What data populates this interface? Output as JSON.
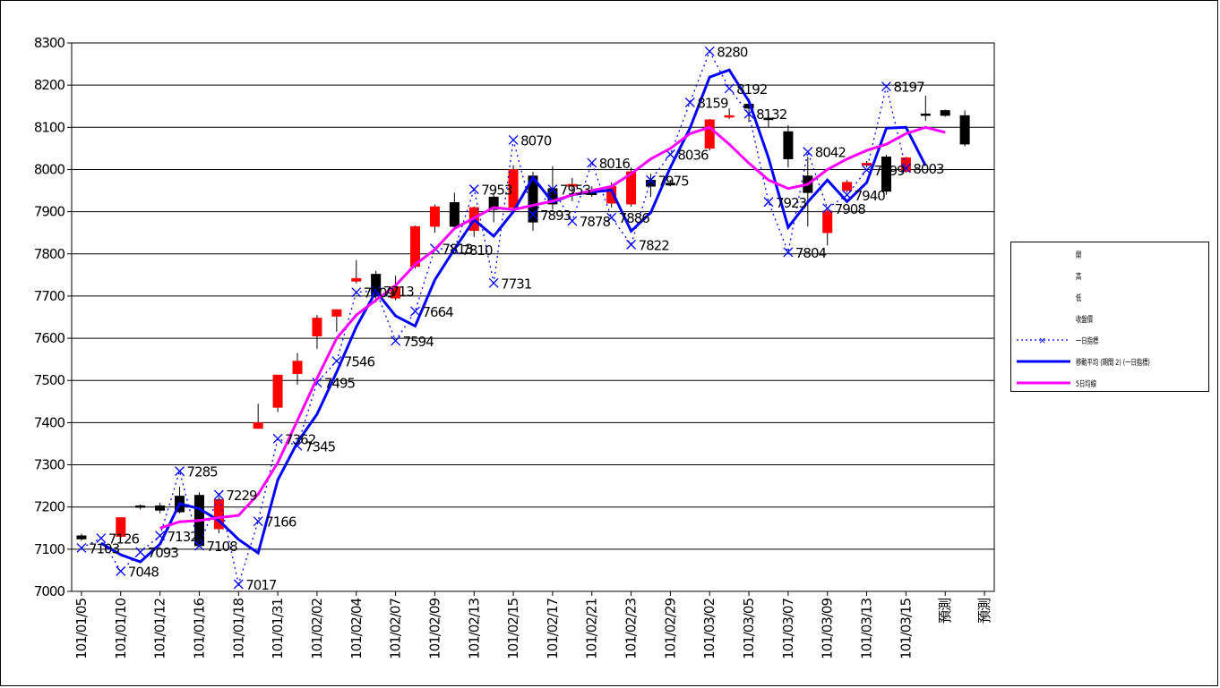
{
  "colors": {
    "background": "#ffffff",
    "grid": "#000000",
    "up_candle": "#ff0000",
    "down_candle": "#000000",
    "index_line": "#0000ff",
    "avg_line": "#0000ff",
    "ma_line": "#ff00ff"
  },
  "legend": {
    "items": [
      {
        "name": "open-entry",
        "label": "開"
      },
      {
        "name": "high-entry",
        "label": "高"
      },
      {
        "name": "low-entry",
        "label": "低"
      },
      {
        "name": "close-entry",
        "label": "收盤價"
      },
      {
        "name": "index-entry",
        "label": "一日指標"
      },
      {
        "name": "avg-entry",
        "label": "移動平均 (期間 2) (一日指標)"
      },
      {
        "name": "ma-entry",
        "label": "5日均線"
      }
    ]
  },
  "chart_data": {
    "type": "line",
    "title": "",
    "xlabel": "",
    "ylabel": "",
    "ylim": [
      7000,
      8300
    ],
    "yticks": [
      7000,
      7100,
      7200,
      7300,
      7400,
      7500,
      7600,
      7700,
      7800,
      7900,
      8000,
      8100,
      8200,
      8300
    ],
    "grid": true,
    "legend_position": "right",
    "x_tick_labels": [
      "101/01/05",
      "101/01/10",
      "101/01/12",
      "101/01/16",
      "101/01/18",
      "101/01/31",
      "101/02/02",
      "101/02/04",
      "101/02/07",
      "101/02/09",
      "101/02/13",
      "101/02/15",
      "101/02/17",
      "101/02/21",
      "101/02/23",
      "101/02/29",
      "101/03/02",
      "101/03/05",
      "101/03/07",
      "101/03/09",
      "101/03/13",
      "101/03/15",
      "預測",
      "預測"
    ],
    "candles": [
      {
        "i": 0,
        "open": 7132,
        "high": 7137,
        "low": 7120,
        "close": 7124
      },
      {
        "i": 2,
        "open": 7130,
        "high": 7175,
        "low": 7127,
        "close": 7175
      },
      {
        "i": 3,
        "open": 7203,
        "high": 7206,
        "low": 7194,
        "close": 7199
      },
      {
        "i": 4,
        "open": 7203,
        "high": 7210,
        "low": 7185,
        "close": 7192
      },
      {
        "i": 5,
        "open": 7226,
        "high": 7248,
        "low": 7185,
        "close": 7188
      },
      {
        "i": 6,
        "open": 7228,
        "high": 7235,
        "low": 7105,
        "close": 7108
      },
      {
        "i": 7,
        "open": 7148,
        "high": 7225,
        "low": 7138,
        "close": 7218
      },
      {
        "i": 9,
        "open": 7386,
        "high": 7445,
        "low": 7385,
        "close": 7400
      },
      {
        "i": 10,
        "open": 7436,
        "high": 7513,
        "low": 7425,
        "close": 7513
      },
      {
        "i": 11,
        "open": 7516,
        "high": 7565,
        "low": 7490,
        "close": 7546
      },
      {
        "i": 12,
        "open": 7605,
        "high": 7655,
        "low": 7575,
        "close": 7648
      },
      {
        "i": 13,
        "open": 7652,
        "high": 7668,
        "low": 7615,
        "close": 7668
      },
      {
        "i": 14,
        "open": 7735,
        "high": 7785,
        "low": 7730,
        "close": 7742
      },
      {
        "i": 15,
        "open": 7752,
        "high": 7760,
        "low": 7685,
        "close": 7700
      },
      {
        "i": 16,
        "open": 7695,
        "high": 7748,
        "low": 7690,
        "close": 7722
      },
      {
        "i": 17,
        "open": 7770,
        "high": 7867,
        "low": 7765,
        "close": 7865
      },
      {
        "i": 18,
        "open": 7865,
        "high": 7917,
        "low": 7850,
        "close": 7912
      },
      {
        "i": 19,
        "open": 7922,
        "high": 7945,
        "low": 7860,
        "close": 7865
      },
      {
        "i": 20,
        "open": 7855,
        "high": 7912,
        "low": 7840,
        "close": 7910
      },
      {
        "i": 21,
        "open": 7935,
        "high": 7945,
        "low": 7875,
        "close": 7905
      },
      {
        "i": 22,
        "open": 7910,
        "high": 8010,
        "low": 7905,
        "close": 8000
      },
      {
        "i": 23,
        "open": 7985,
        "high": 7995,
        "low": 7855,
        "close": 7875
      },
      {
        "i": 24,
        "open": 7955,
        "high": 8008,
        "low": 7905,
        "close": 7918
      },
      {
        "i": 25,
        "open": 7960,
        "high": 7980,
        "low": 7925,
        "close": 7965
      },
      {
        "i": 26,
        "open": 7950,
        "high": 7960,
        "low": 7935,
        "close": 7940
      },
      {
        "i": 27,
        "open": 7920,
        "high": 7970,
        "low": 7910,
        "close": 7960
      },
      {
        "i": 28,
        "open": 7918,
        "high": 8005,
        "low": 7912,
        "close": 7995
      },
      {
        "i": 29,
        "open": 7975,
        "high": 7990,
        "low": 7935,
        "close": 7960
      },
      {
        "i": 30,
        "open": 7968,
        "high": 7975,
        "low": 7960,
        "close": 7963
      },
      {
        "i": 32,
        "open": 8050,
        "high": 8120,
        "low": 8045,
        "close": 8118
      },
      {
        "i": 33,
        "open": 8125,
        "high": 8145,
        "low": 8120,
        "close": 8128
      },
      {
        "i": 34,
        "open": 8155,
        "high": 8168,
        "low": 8112,
        "close": 8145
      },
      {
        "i": 35,
        "open": 8122,
        "high": 8135,
        "low": 8100,
        "close": 8120
      },
      {
        "i": 36,
        "open": 8090,
        "high": 8105,
        "low": 8005,
        "close": 8025
      },
      {
        "i": 37,
        "open": 7985,
        "high": 8030,
        "low": 7865,
        "close": 7945
      },
      {
        "i": 38,
        "open": 7850,
        "high": 7905,
        "low": 7820,
        "close": 7902
      },
      {
        "i": 39,
        "open": 7950,
        "high": 7975,
        "low": 7945,
        "close": 7970
      },
      {
        "i": 40,
        "open": 8010,
        "high": 8020,
        "low": 8005,
        "close": 8015
      },
      {
        "i": 41,
        "open": 8030,
        "high": 8035,
        "low": 7940,
        "close": 7948
      },
      {
        "i": 42,
        "open": 7995,
        "high": 8030,
        "low": 7992,
        "close": 8028
      },
      {
        "i": 43,
        "open": 8132,
        "high": 8175,
        "low": 8115,
        "close": 8130
      },
      {
        "i": 44,
        "open": 8140,
        "high": 8142,
        "low": 8125,
        "close": 8128
      },
      {
        "i": 45,
        "open": 8128,
        "high": 8140,
        "low": 8055,
        "close": 8060
      }
    ],
    "series": [
      {
        "name": "一日指標",
        "style": "dotted-x",
        "values": [
          7103,
          7126,
          7048,
          7093,
          7132,
          7285,
          7108,
          7229,
          7017,
          7166,
          7362,
          7345,
          7495,
          7546,
          7709,
          7713,
          7594,
          7664,
          7813,
          7810,
          7953,
          7731,
          8070,
          7893,
          7953,
          7878,
          8016,
          7886,
          7822,
          7975,
          8036,
          8159,
          8280,
          8192,
          8132,
          7923,
          7804,
          8042,
          7908,
          7940,
          7999,
          8197,
          8003
        ],
        "x_index": [
          0,
          1,
          2,
          3,
          4,
          5,
          6,
          7,
          8,
          9,
          10,
          11,
          12,
          13,
          14,
          15,
          16,
          17,
          18,
          19,
          20,
          21,
          22,
          23,
          24,
          25,
          26,
          27,
          28,
          29,
          30,
          31,
          32,
          33,
          34,
          35,
          36,
          37,
          38,
          39,
          40,
          41,
          42
        ]
      },
      {
        "name": "移動平均 (期間 2) (一日指標)",
        "style": "solid",
        "values": [
          7114,
          7087,
          7070,
          7112,
          7208,
          7196,
          7168,
          7123,
          7091,
          7264,
          7353,
          7420,
          7520,
          7627,
          7711,
          7653,
          7629,
          7738,
          7811,
          7881,
          7842,
          7900,
          7981,
          7923,
          7940,
          7947,
          7951,
          7854,
          7898,
          8005,
          8098,
          8219,
          8236,
          8162,
          8027,
          7863,
          7923,
          7975,
          7924,
          7969,
          8098,
          8100,
          8009
        ],
        "x_index": [
          1,
          2,
          3,
          4,
          5,
          6,
          7,
          8,
          9,
          10,
          11,
          12,
          13,
          14,
          15,
          16,
          17,
          18,
          19,
          20,
          21,
          22,
          23,
          24,
          25,
          26,
          27,
          28,
          29,
          30,
          31,
          32,
          33,
          34,
          35,
          36,
          37,
          38,
          39,
          40,
          41,
          42,
          43
        ]
      },
      {
        "name": "5日均線",
        "style": "solid",
        "values": [
          7150,
          7165,
          7168,
          7175,
          7180,
          7230,
          7305,
          7405,
          7505,
          7600,
          7655,
          7690,
          7725,
          7775,
          7810,
          7860,
          7885,
          7910,
          7905,
          7915,
          7925,
          7940,
          7950,
          7960,
          7990,
          8025,
          8050,
          8085,
          8100,
          8060,
          8015,
          7975,
          7955,
          7965,
          8000,
          8025,
          8045,
          8060,
          8085,
          8100,
          8088
        ],
        "x_index": [
          4,
          5,
          6,
          7,
          8,
          9,
          10,
          11,
          12,
          13,
          14,
          15,
          16,
          17,
          18,
          19,
          20,
          21,
          22,
          23,
          24,
          25,
          26,
          27,
          28,
          29,
          30,
          31,
          32,
          33,
          34,
          35,
          36,
          37,
          38,
          39,
          40,
          41,
          42,
          43,
          44
        ]
      }
    ],
    "data_labels": [
      {
        "i": 0,
        "text": "7103"
      },
      {
        "i": 1,
        "text": "7126"
      },
      {
        "i": 2,
        "text": "7048"
      },
      {
        "i": 3,
        "text": "7093"
      },
      {
        "i": 4,
        "text": "7132"
      },
      {
        "i": 5,
        "text": "7285"
      },
      {
        "i": 6,
        "text": "7108"
      },
      {
        "i": 7,
        "text": "7229"
      },
      {
        "i": 8,
        "text": "7017"
      },
      {
        "i": 9,
        "text": "7166"
      },
      {
        "i": 10,
        "text": "7362"
      },
      {
        "i": 11,
        "text": "7345"
      },
      {
        "i": 12,
        "text": "7495"
      },
      {
        "i": 13,
        "text": "7546"
      },
      {
        "i": 14,
        "text": "7709"
      },
      {
        "i": 15,
        "text": "7713"
      },
      {
        "i": 16,
        "text": "7594"
      },
      {
        "i": 17,
        "text": "7664"
      },
      {
        "i": 18,
        "text": "7813"
      },
      {
        "i": 19,
        "text": "7810"
      },
      {
        "i": 20,
        "text": "7953"
      },
      {
        "i": 21,
        "text": "7731"
      },
      {
        "i": 22,
        "text": "8070"
      },
      {
        "i": 23,
        "text": "7893"
      },
      {
        "i": 24,
        "text": "7953"
      },
      {
        "i": 25,
        "text": "7878"
      },
      {
        "i": 26,
        "text": "8016"
      },
      {
        "i": 27,
        "text": "7886"
      },
      {
        "i": 28,
        "text": "7822"
      },
      {
        "i": 29,
        "text": "7975"
      },
      {
        "i": 30,
        "text": "8036"
      },
      {
        "i": 31,
        "text": "8159"
      },
      {
        "i": 32,
        "text": "8280"
      },
      {
        "i": 33,
        "text": "8192"
      },
      {
        "i": 34,
        "text": "8132"
      },
      {
        "i": 35,
        "text": "7923"
      },
      {
        "i": 36,
        "text": "7804"
      },
      {
        "i": 37,
        "text": "8042"
      },
      {
        "i": 38,
        "text": "7908"
      },
      {
        "i": 39,
        "text": "7940"
      },
      {
        "i": 40,
        "text": "7999"
      },
      {
        "i": 41,
        "text": "8197"
      },
      {
        "i": 42,
        "text": "8003"
      }
    ],
    "n_slots": 47
  }
}
